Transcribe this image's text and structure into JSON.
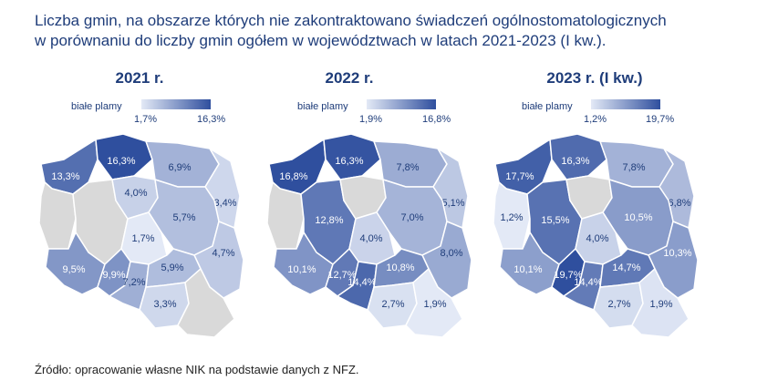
{
  "title_line1": "Liczba gmin, na obszarze których nie zakontraktowano świadczeń ogólnostomatologicznych",
  "title_line2": "w porównaniu do liczby gmin ogółem w województwach w latach 2021-2023 (I kw.).",
  "source": "Źródło: opracowanie własne NIK na podstawie danych z NFZ.",
  "colors": {
    "low": "#e3e9f6",
    "high": "#2f4f9e",
    "no_data": "#d9d9d9",
    "title": "#1f3d7a"
  },
  "chart_data": [
    {
      "type": "choropleth",
      "title": "2021 r.",
      "legend": {
        "label": "białe plamy",
        "min_label": "1,7%",
        "max_label": "16,3%",
        "min": 1.7,
        "max": 16.3
      },
      "values": [
        {
          "region": "zachodniopomorskie",
          "value": 13.3,
          "label": "13,3%"
        },
        {
          "region": "pomorskie",
          "value": 16.3,
          "label": "16,3%"
        },
        {
          "region": "warmińsko-mazurskie",
          "value": 6.9,
          "label": "6,9%"
        },
        {
          "region": "podlaskie",
          "value": 3.4,
          "label": "3,4%"
        },
        {
          "region": "lubuskie",
          "value": null,
          "label": ""
        },
        {
          "region": "wielkopolskie",
          "value": null,
          "label": ""
        },
        {
          "region": "kujawsko-pomorskie",
          "value": 4.0,
          "label": "4,0%"
        },
        {
          "region": "mazowieckie",
          "value": 5.7,
          "label": "5,7%"
        },
        {
          "region": "łódzkie",
          "value": 1.7,
          "label": "1,7%"
        },
        {
          "region": "lubelskie",
          "value": 4.7,
          "label": "4,7%"
        },
        {
          "region": "dolnośląskie",
          "value": 9.5,
          "label": "9,5%"
        },
        {
          "region": "opolskie",
          "value": 9.9,
          "label": "9,9%"
        },
        {
          "region": "śląskie",
          "value": 7.2,
          "label": "7,2%"
        },
        {
          "region": "świętokrzyskie",
          "value": 5.9,
          "label": "5,9%"
        },
        {
          "region": "małopolskie",
          "value": 3.3,
          "label": "3,3%"
        },
        {
          "region": "podkarpackie",
          "value": null,
          "label": ""
        }
      ]
    },
    {
      "type": "choropleth",
      "title": "2022 r.",
      "legend": {
        "label": "białe plamy",
        "min_label": "1,9%",
        "max_label": "16,8%",
        "min": 1.9,
        "max": 16.8
      },
      "values": [
        {
          "region": "zachodniopomorskie",
          "value": 16.8,
          "label": "16,8%"
        },
        {
          "region": "pomorskie",
          "value": 16.3,
          "label": "16,3%"
        },
        {
          "region": "warmińsko-mazurskie",
          "value": 7.8,
          "label": "7,8%"
        },
        {
          "region": "podlaskie",
          "value": 5.1,
          "label": "5,1%"
        },
        {
          "region": "lubuskie",
          "value": null,
          "label": ""
        },
        {
          "region": "wielkopolskie",
          "value": 12.8,
          "label": "12,8%"
        },
        {
          "region": "kujawsko-pomorskie",
          "value": null,
          "label": ""
        },
        {
          "region": "mazowieckie",
          "value": 7.0,
          "label": "7,0%"
        },
        {
          "region": "łódzkie",
          "value": 4.0,
          "label": "4,0%"
        },
        {
          "region": "lubelskie",
          "value": 8.0,
          "label": "8,0%"
        },
        {
          "region": "dolnośląskie",
          "value": 10.1,
          "label": "10,1%"
        },
        {
          "region": "opolskie",
          "value": 12.7,
          "label": "12,7%"
        },
        {
          "region": "śląskie",
          "value": 14.4,
          "label": "14,4%"
        },
        {
          "region": "świętokrzyskie",
          "value": 10.8,
          "label": "10,8%"
        },
        {
          "region": "małopolskie",
          "value": 2.7,
          "label": "2,7%"
        },
        {
          "region": "podkarpackie",
          "value": 1.9,
          "label": "1,9%"
        }
      ]
    },
    {
      "type": "choropleth",
      "title": "2023 r. (I kw.)",
      "legend": {
        "label": "białe plamy",
        "min_label": "1,2%",
        "max_label": "19,7%",
        "min": 1.2,
        "max": 19.7
      },
      "values": [
        {
          "region": "zachodniopomorskie",
          "value": 17.7,
          "label": "17,7%"
        },
        {
          "region": "pomorskie",
          "value": 16.3,
          "label": "16,3%"
        },
        {
          "region": "warmińsko-mazurskie",
          "value": 7.8,
          "label": "7,8%"
        },
        {
          "region": "podlaskie",
          "value": 6.8,
          "label": "6,8%"
        },
        {
          "region": "lubuskie",
          "value": 1.2,
          "label": "1,2%"
        },
        {
          "region": "wielkopolskie",
          "value": 15.5,
          "label": "15,5%"
        },
        {
          "region": "kujawsko-pomorskie",
          "value": null,
          "label": ""
        },
        {
          "region": "mazowieckie",
          "value": 10.5,
          "label": "10,5%"
        },
        {
          "region": "łódzkie",
          "value": 4.0,
          "label": "4,0%"
        },
        {
          "region": "lubelskie",
          "value": 10.3,
          "label": "10,3%"
        },
        {
          "region": "dolnośląskie",
          "value": 10.1,
          "label": "10,1%"
        },
        {
          "region": "opolskie",
          "value": 19.7,
          "label": "19,7%"
        },
        {
          "region": "śląskie",
          "value": 14.4,
          "label": "14,4%"
        },
        {
          "region": "świętokrzyskie",
          "value": 14.7,
          "label": "14,7%"
        },
        {
          "region": "małopolskie",
          "value": 2.7,
          "label": "2,7%"
        },
        {
          "region": "podkarpackie",
          "value": 1.9,
          "label": "1,9%"
        }
      ]
    }
  ]
}
